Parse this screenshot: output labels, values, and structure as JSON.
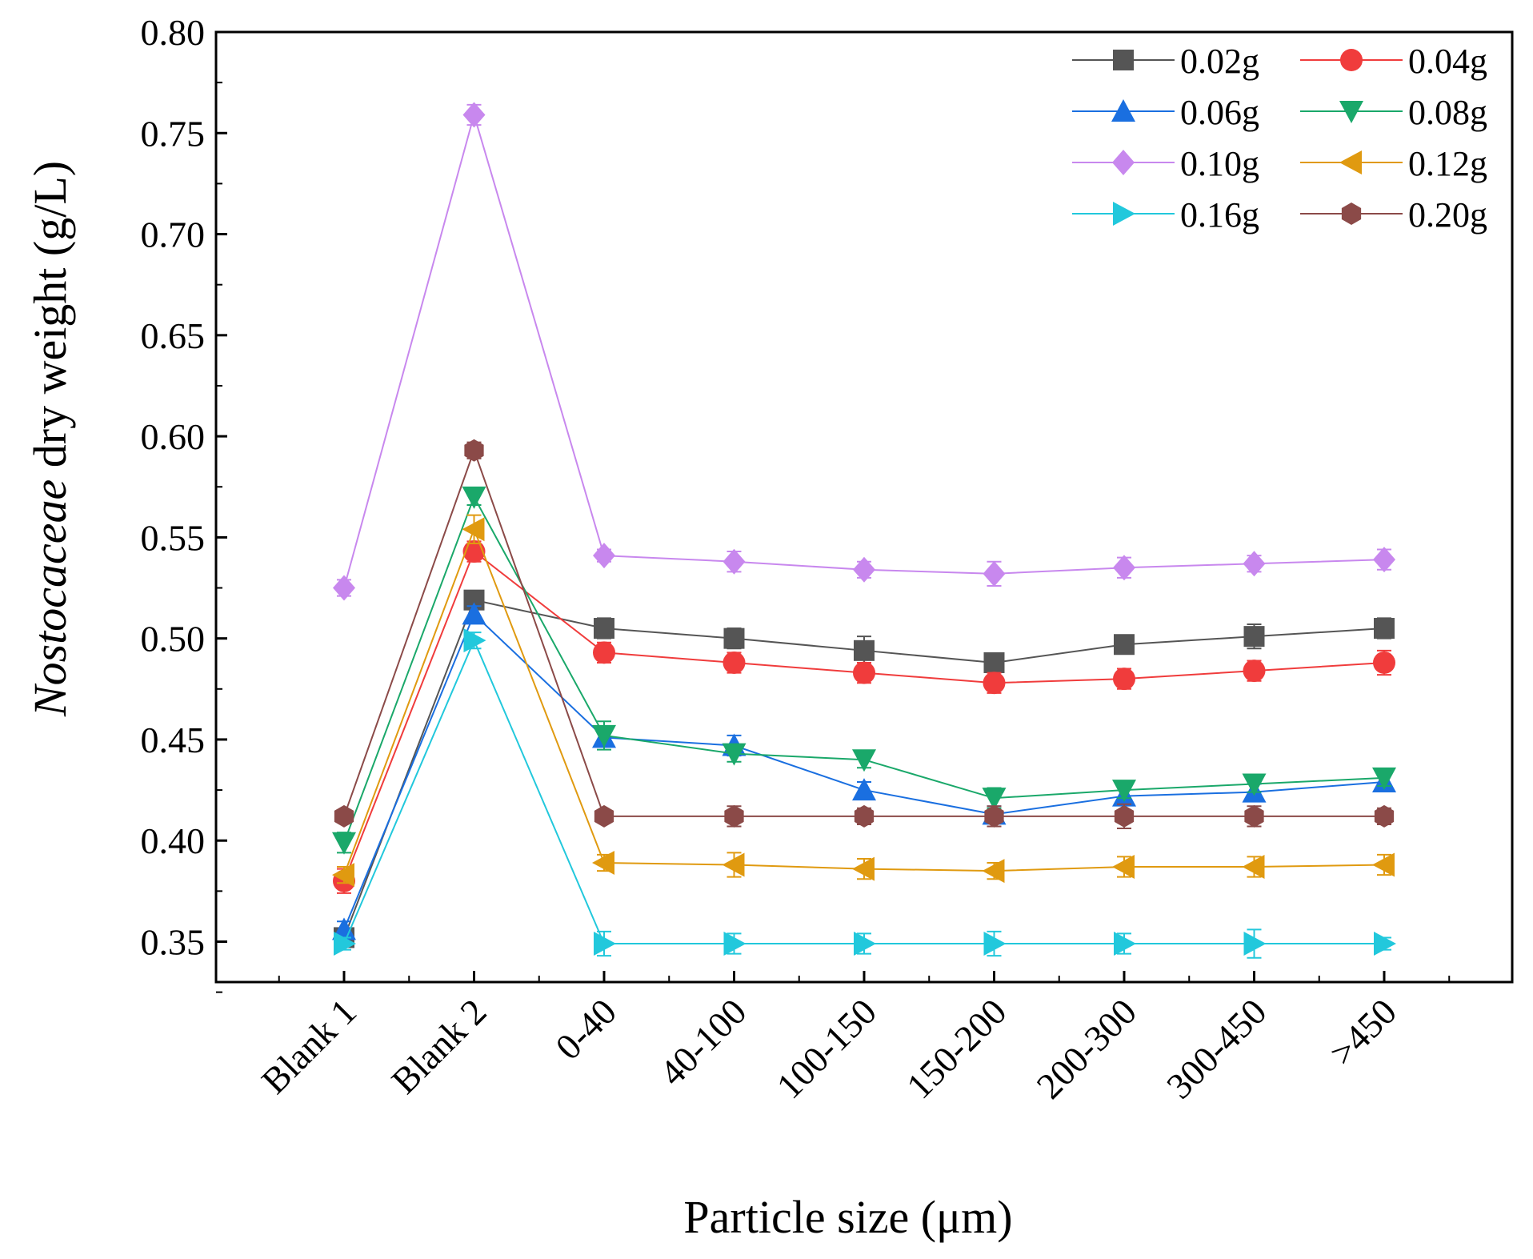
{
  "chart_data": {
    "type": "line",
    "title": "",
    "xlabel": "Particle size (μm)",
    "ylabel_italic": "Nostocaceae",
    "ylabel_rest": " dry weight (g/L)",
    "categories": [
      "Blank 1",
      "Blank 2",
      "0-40",
      "40-100",
      "100-150",
      "150-200",
      "200-300",
      "300-450",
      ">450"
    ],
    "ylim": [
      0.33,
      0.8
    ],
    "yticks": [
      0.35,
      0.4,
      0.45,
      0.5,
      0.55,
      0.6,
      0.65,
      0.7,
      0.75,
      0.8
    ],
    "ytick_labels": [
      "0.35",
      "0.40",
      "0.45",
      "0.50",
      "0.55",
      "0.60",
      "0.65",
      "0.70",
      "0.75",
      "0.80"
    ],
    "legend_position": "top-right",
    "series": [
      {
        "name": "0.02g",
        "color": "#555555",
        "marker": "square",
        "values": [
          0.352,
          0.519,
          0.505,
          0.5,
          0.494,
          0.488,
          0.497,
          0.501,
          0.505
        ],
        "errors": [
          0.004,
          0.003,
          0.005,
          0.005,
          0.007,
          0.004,
          0.004,
          0.006,
          0.005
        ]
      },
      {
        "name": "0.04g",
        "color": "#f03c3c",
        "marker": "circle",
        "values": [
          0.38,
          0.543,
          0.493,
          0.488,
          0.483,
          0.478,
          0.48,
          0.484,
          0.488
        ],
        "errors": [
          0.006,
          0.005,
          0.005,
          0.005,
          0.005,
          0.005,
          0.005,
          0.005,
          0.006
        ]
      },
      {
        "name": "0.06g",
        "color": "#1a6fe0",
        "marker": "triangle-up",
        "values": [
          0.356,
          0.512,
          0.451,
          0.447,
          0.425,
          0.413,
          0.422,
          0.424,
          0.429
        ],
        "errors": [
          0.004,
          0.004,
          0.004,
          0.005,
          0.004,
          0.004,
          0.004,
          0.004,
          0.004
        ]
      },
      {
        "name": "0.08g",
        "color": "#1aa86a",
        "marker": "triangle-down",
        "values": [
          0.399,
          0.57,
          0.452,
          0.443,
          0.44,
          0.421,
          0.425,
          0.428,
          0.431
        ],
        "errors": [
          0.005,
          0.004,
          0.007,
          0.004,
          0.004,
          0.005,
          0.004,
          0.004,
          0.004
        ]
      },
      {
        "name": "0.10g",
        "color": "#c888ee",
        "marker": "diamond",
        "values": [
          0.525,
          0.759,
          0.541,
          0.538,
          0.534,
          0.532,
          0.535,
          0.537,
          0.539
        ],
        "errors": [
          0.004,
          0.005,
          0.003,
          0.005,
          0.004,
          0.006,
          0.005,
          0.004,
          0.005
        ]
      },
      {
        "name": "0.12g",
        "color": "#e09a10",
        "marker": "triangle-left",
        "values": [
          0.383,
          0.554,
          0.389,
          0.388,
          0.386,
          0.385,
          0.387,
          0.387,
          0.388
        ],
        "errors": [
          0.004,
          0.007,
          0.004,
          0.006,
          0.005,
          0.004,
          0.005,
          0.005,
          0.005
        ]
      },
      {
        "name": "0.16g",
        "color": "#22c8dc",
        "marker": "triangle-right",
        "values": [
          0.349,
          0.499,
          0.349,
          0.349,
          0.349,
          0.349,
          0.349,
          0.349,
          0.349
        ],
        "errors": [
          0.003,
          0.004,
          0.006,
          0.005,
          0.005,
          0.006,
          0.005,
          0.007,
          0.003
        ]
      },
      {
        "name": "0.20g",
        "color": "#8b4a48",
        "marker": "hexagon",
        "values": [
          0.412,
          0.593,
          0.412,
          0.412,
          0.412,
          0.412,
          0.412,
          0.412,
          0.412
        ],
        "errors": [
          0.003,
          0.004,
          0.003,
          0.005,
          0.004,
          0.005,
          0.006,
          0.005,
          0.004
        ]
      }
    ]
  }
}
